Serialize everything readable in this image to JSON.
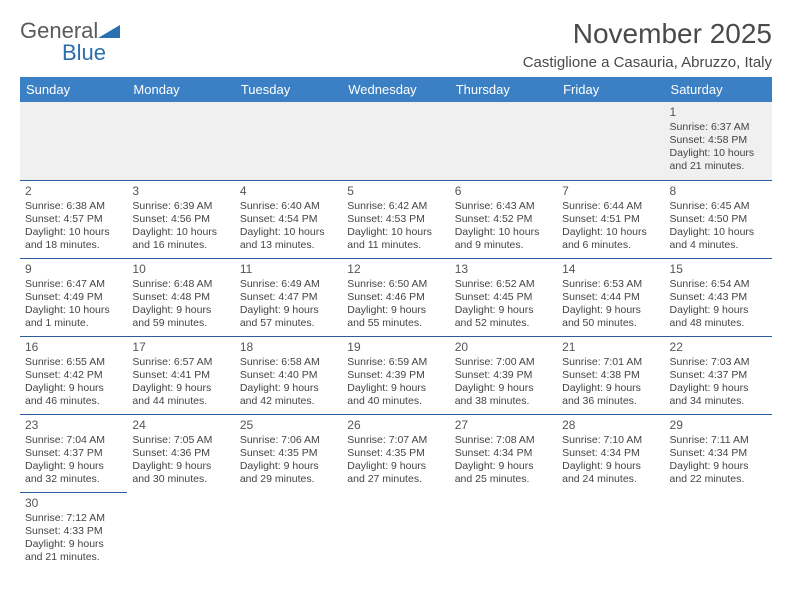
{
  "brand": {
    "part1": "General",
    "part2": "Blue"
  },
  "header": {
    "title": "November 2025",
    "location": "Castiglione a Casauria, Abruzzo, Italy"
  },
  "colors": {
    "header_bg": "#3b7fc4",
    "header_text": "#ffffff",
    "row_border": "#2a5d9e",
    "first_row_bg": "#f0f0f0",
    "logo_blue": "#2b6fb0",
    "logo_gray": "#5a5a5a",
    "text": "#444444"
  },
  "day_headers": [
    "Sunday",
    "Monday",
    "Tuesday",
    "Wednesday",
    "Thursday",
    "Friday",
    "Saturday"
  ],
  "weeks": [
    [
      {
        "day": "",
        "lines": []
      },
      {
        "day": "",
        "lines": []
      },
      {
        "day": "",
        "lines": []
      },
      {
        "day": "",
        "lines": []
      },
      {
        "day": "",
        "lines": []
      },
      {
        "day": "",
        "lines": []
      },
      {
        "day": "1",
        "lines": [
          "Sunrise: 6:37 AM",
          "Sunset: 4:58 PM",
          "Daylight: 10 hours",
          "and 21 minutes."
        ]
      }
    ],
    [
      {
        "day": "2",
        "lines": [
          "Sunrise: 6:38 AM",
          "Sunset: 4:57 PM",
          "Daylight: 10 hours",
          "and 18 minutes."
        ]
      },
      {
        "day": "3",
        "lines": [
          "Sunrise: 6:39 AM",
          "Sunset: 4:56 PM",
          "Daylight: 10 hours",
          "and 16 minutes."
        ]
      },
      {
        "day": "4",
        "lines": [
          "Sunrise: 6:40 AM",
          "Sunset: 4:54 PM",
          "Daylight: 10 hours",
          "and 13 minutes."
        ]
      },
      {
        "day": "5",
        "lines": [
          "Sunrise: 6:42 AM",
          "Sunset: 4:53 PM",
          "Daylight: 10 hours",
          "and 11 minutes."
        ]
      },
      {
        "day": "6",
        "lines": [
          "Sunrise: 6:43 AM",
          "Sunset: 4:52 PM",
          "Daylight: 10 hours",
          "and 9 minutes."
        ]
      },
      {
        "day": "7",
        "lines": [
          "Sunrise: 6:44 AM",
          "Sunset: 4:51 PM",
          "Daylight: 10 hours",
          "and 6 minutes."
        ]
      },
      {
        "day": "8",
        "lines": [
          "Sunrise: 6:45 AM",
          "Sunset: 4:50 PM",
          "Daylight: 10 hours",
          "and 4 minutes."
        ]
      }
    ],
    [
      {
        "day": "9",
        "lines": [
          "Sunrise: 6:47 AM",
          "Sunset: 4:49 PM",
          "Daylight: 10 hours",
          "and 1 minute."
        ]
      },
      {
        "day": "10",
        "lines": [
          "Sunrise: 6:48 AM",
          "Sunset: 4:48 PM",
          "Daylight: 9 hours",
          "and 59 minutes."
        ]
      },
      {
        "day": "11",
        "lines": [
          "Sunrise: 6:49 AM",
          "Sunset: 4:47 PM",
          "Daylight: 9 hours",
          "and 57 minutes."
        ]
      },
      {
        "day": "12",
        "lines": [
          "Sunrise: 6:50 AM",
          "Sunset: 4:46 PM",
          "Daylight: 9 hours",
          "and 55 minutes."
        ]
      },
      {
        "day": "13",
        "lines": [
          "Sunrise: 6:52 AM",
          "Sunset: 4:45 PM",
          "Daylight: 9 hours",
          "and 52 minutes."
        ]
      },
      {
        "day": "14",
        "lines": [
          "Sunrise: 6:53 AM",
          "Sunset: 4:44 PM",
          "Daylight: 9 hours",
          "and 50 minutes."
        ]
      },
      {
        "day": "15",
        "lines": [
          "Sunrise: 6:54 AM",
          "Sunset: 4:43 PM",
          "Daylight: 9 hours",
          "and 48 minutes."
        ]
      }
    ],
    [
      {
        "day": "16",
        "lines": [
          "Sunrise: 6:55 AM",
          "Sunset: 4:42 PM",
          "Daylight: 9 hours",
          "and 46 minutes."
        ]
      },
      {
        "day": "17",
        "lines": [
          "Sunrise: 6:57 AM",
          "Sunset: 4:41 PM",
          "Daylight: 9 hours",
          "and 44 minutes."
        ]
      },
      {
        "day": "18",
        "lines": [
          "Sunrise: 6:58 AM",
          "Sunset: 4:40 PM",
          "Daylight: 9 hours",
          "and 42 minutes."
        ]
      },
      {
        "day": "19",
        "lines": [
          "Sunrise: 6:59 AM",
          "Sunset: 4:39 PM",
          "Daylight: 9 hours",
          "and 40 minutes."
        ]
      },
      {
        "day": "20",
        "lines": [
          "Sunrise: 7:00 AM",
          "Sunset: 4:39 PM",
          "Daylight: 9 hours",
          "and 38 minutes."
        ]
      },
      {
        "day": "21",
        "lines": [
          "Sunrise: 7:01 AM",
          "Sunset: 4:38 PM",
          "Daylight: 9 hours",
          "and 36 minutes."
        ]
      },
      {
        "day": "22",
        "lines": [
          "Sunrise: 7:03 AM",
          "Sunset: 4:37 PM",
          "Daylight: 9 hours",
          "and 34 minutes."
        ]
      }
    ],
    [
      {
        "day": "23",
        "lines": [
          "Sunrise: 7:04 AM",
          "Sunset: 4:37 PM",
          "Daylight: 9 hours",
          "and 32 minutes."
        ]
      },
      {
        "day": "24",
        "lines": [
          "Sunrise: 7:05 AM",
          "Sunset: 4:36 PM",
          "Daylight: 9 hours",
          "and 30 minutes."
        ]
      },
      {
        "day": "25",
        "lines": [
          "Sunrise: 7:06 AM",
          "Sunset: 4:35 PM",
          "Daylight: 9 hours",
          "and 29 minutes."
        ]
      },
      {
        "day": "26",
        "lines": [
          "Sunrise: 7:07 AM",
          "Sunset: 4:35 PM",
          "Daylight: 9 hours",
          "and 27 minutes."
        ]
      },
      {
        "day": "27",
        "lines": [
          "Sunrise: 7:08 AM",
          "Sunset: 4:34 PM",
          "Daylight: 9 hours",
          "and 25 minutes."
        ]
      },
      {
        "day": "28",
        "lines": [
          "Sunrise: 7:10 AM",
          "Sunset: 4:34 PM",
          "Daylight: 9 hours",
          "and 24 minutes."
        ]
      },
      {
        "day": "29",
        "lines": [
          "Sunrise: 7:11 AM",
          "Sunset: 4:34 PM",
          "Daylight: 9 hours",
          "and 22 minutes."
        ]
      }
    ],
    [
      {
        "day": "30",
        "lines": [
          "Sunrise: 7:12 AM",
          "Sunset: 4:33 PM",
          "Daylight: 9 hours",
          "and 21 minutes."
        ]
      },
      {
        "day": "",
        "lines": []
      },
      {
        "day": "",
        "lines": []
      },
      {
        "day": "",
        "lines": []
      },
      {
        "day": "",
        "lines": []
      },
      {
        "day": "",
        "lines": []
      },
      {
        "day": "",
        "lines": []
      }
    ]
  ]
}
